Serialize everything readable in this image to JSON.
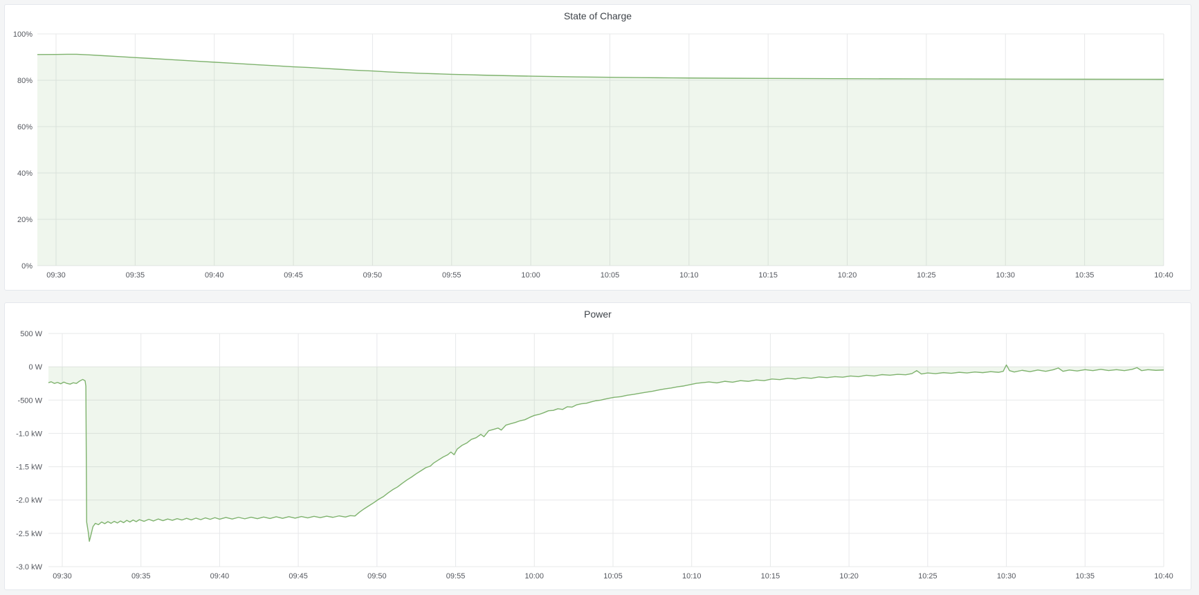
{
  "page": {
    "background_color": "#f4f5f6",
    "panel_background": "#ffffff",
    "panel_border_color": "#e4e7ec"
  },
  "panels": [
    {
      "title": "State of Charge",
      "chart_data": {
        "type": "area",
        "series_name": "State of Charge",
        "line_color": "#7EB26D",
        "fill_color": "rgba(126,178,109,0.12)",
        "grid": true,
        "legend": "none",
        "x_unit": "minutes after 09:30",
        "y_unit": "percent",
        "ylim": [
          0,
          100
        ],
        "xlim": [
          -1.2,
          70
        ],
        "x_tick_minutes": [
          0,
          5,
          10,
          15,
          20,
          25,
          30,
          35,
          40,
          45,
          50,
          55,
          60,
          65,
          70
        ],
        "x_tick_labels": [
          "09:30",
          "09:35",
          "09:40",
          "09:45",
          "09:50",
          "09:55",
          "10:00",
          "10:05",
          "10:10",
          "10:15",
          "10:20",
          "10:25",
          "10:30",
          "10:35",
          "10:40"
        ],
        "y_tick_values": [
          100,
          80,
          60,
          40,
          20,
          0
        ],
        "y_tick_labels": [
          "100%",
          "80%",
          "60%",
          "40%",
          "20%",
          "0%"
        ],
        "points": [
          [
            -1.3,
            91.1
          ],
          [
            0,
            91.15
          ],
          [
            0.7,
            91.2
          ],
          [
            1.3,
            91.2
          ],
          [
            2,
            91.0
          ],
          [
            3,
            90.6
          ],
          [
            4,
            90.2
          ],
          [
            5,
            89.8
          ],
          [
            6,
            89.4
          ],
          [
            7,
            89.0
          ],
          [
            8,
            88.6
          ],
          [
            9,
            88.2
          ],
          [
            10,
            87.8
          ],
          [
            11,
            87.4
          ],
          [
            12,
            87.0
          ],
          [
            13,
            86.6
          ],
          [
            14,
            86.2
          ],
          [
            15,
            85.8
          ],
          [
            16,
            85.5
          ],
          [
            17,
            85.1
          ],
          [
            18,
            84.7
          ],
          [
            19,
            84.3
          ],
          [
            20,
            84.0
          ],
          [
            21,
            83.6
          ],
          [
            22,
            83.3
          ],
          [
            23,
            83.0
          ],
          [
            24,
            82.8
          ],
          [
            25,
            82.56
          ],
          [
            26,
            82.4
          ],
          [
            27,
            82.2
          ],
          [
            28,
            82.05
          ],
          [
            29,
            81.9
          ],
          [
            30,
            81.77
          ],
          [
            31,
            81.65
          ],
          [
            32,
            81.55
          ],
          [
            33,
            81.45
          ],
          [
            34,
            81.36
          ],
          [
            35,
            81.28
          ],
          [
            36,
            81.2
          ],
          [
            37,
            81.14
          ],
          [
            38,
            81.08
          ],
          [
            39,
            81.02
          ],
          [
            40,
            80.97
          ],
          [
            41,
            80.93
          ],
          [
            43,
            80.86
          ],
          [
            45,
            80.8
          ],
          [
            48,
            80.72
          ],
          [
            51,
            80.65
          ],
          [
            55,
            80.57
          ],
          [
            60,
            80.5
          ],
          [
            65,
            80.45
          ],
          [
            70,
            80.41
          ]
        ]
      }
    },
    {
      "title": "Power",
      "chart_data": {
        "type": "area",
        "series_name": "Power",
        "line_color": "#7EB26D",
        "fill_color": "rgba(126,178,109,0.12)",
        "grid": true,
        "legend": "none",
        "x_unit": "minutes after 09:30",
        "y_unit": "watts",
        "ylim": [
          -3000,
          500
        ],
        "xlim": [
          -0.9,
          70
        ],
        "x_tick_minutes": [
          0,
          5,
          10,
          15,
          20,
          25,
          30,
          35,
          40,
          45,
          50,
          55,
          60,
          65,
          70
        ],
        "x_tick_labels": [
          "09:30",
          "09:35",
          "09:40",
          "09:45",
          "09:50",
          "09:55",
          "10:00",
          "10:05",
          "10:10",
          "10:15",
          "10:20",
          "10:25",
          "10:30",
          "10:35",
          "10:40"
        ],
        "y_tick_values": [
          500,
          0,
          -500,
          -1000,
          -1500,
          -2000,
          -2500,
          -3000
        ],
        "y_tick_labels": [
          "500 W",
          "0 W",
          "-500 W",
          "-1.0 kW",
          "-1.5 kW",
          "-2.0 kW",
          "-2.5 kW",
          "-3.0 kW"
        ],
        "points": [
          [
            -1.3,
            -195
          ],
          [
            -1.1,
            -220
          ],
          [
            -0.9,
            -240
          ],
          [
            -0.7,
            -225
          ],
          [
            -0.5,
            -250
          ],
          [
            -0.3,
            -235
          ],
          [
            -0.1,
            -255
          ],
          [
            0.1,
            -230
          ],
          [
            0.3,
            -250
          ],
          [
            0.5,
            -260
          ],
          [
            0.7,
            -240
          ],
          [
            0.9,
            -250
          ],
          [
            1.1,
            -215
          ],
          [
            1.3,
            -190
          ],
          [
            1.45,
            -210
          ],
          [
            1.5,
            -290
          ],
          [
            1.55,
            -2330
          ],
          [
            1.65,
            -2480
          ],
          [
            1.72,
            -2620
          ],
          [
            1.85,
            -2500
          ],
          [
            1.95,
            -2400
          ],
          [
            2.1,
            -2350
          ],
          [
            2.3,
            -2370
          ],
          [
            2.5,
            -2330
          ],
          [
            2.7,
            -2355
          ],
          [
            2.9,
            -2325
          ],
          [
            3.1,
            -2350
          ],
          [
            3.3,
            -2320
          ],
          [
            3.5,
            -2345
          ],
          [
            3.7,
            -2315
          ],
          [
            3.9,
            -2340
          ],
          [
            4.1,
            -2305
          ],
          [
            4.3,
            -2330
          ],
          [
            4.5,
            -2300
          ],
          [
            4.7,
            -2325
          ],
          [
            4.9,
            -2295
          ],
          [
            5.2,
            -2320
          ],
          [
            5.5,
            -2290
          ],
          [
            5.8,
            -2315
          ],
          [
            6.1,
            -2285
          ],
          [
            6.4,
            -2310
          ],
          [
            6.7,
            -2285
          ],
          [
            7.0,
            -2305
          ],
          [
            7.3,
            -2280
          ],
          [
            7.6,
            -2300
          ],
          [
            7.9,
            -2275
          ],
          [
            8.2,
            -2298
          ],
          [
            8.5,
            -2272
          ],
          [
            8.8,
            -2295
          ],
          [
            9.1,
            -2268
          ],
          [
            9.4,
            -2290
          ],
          [
            9.7,
            -2265
          ],
          [
            10.0,
            -2288
          ],
          [
            10.4,
            -2262
          ],
          [
            10.8,
            -2285
          ],
          [
            11.2,
            -2260
          ],
          [
            11.6,
            -2282
          ],
          [
            12.0,
            -2258
          ],
          [
            12.4,
            -2280
          ],
          [
            12.8,
            -2255
          ],
          [
            13.2,
            -2278
          ],
          [
            13.6,
            -2252
          ],
          [
            14.0,
            -2275
          ],
          [
            14.4,
            -2250
          ],
          [
            14.8,
            -2272
          ],
          [
            15.2,
            -2248
          ],
          [
            15.6,
            -2268
          ],
          [
            16.0,
            -2245
          ],
          [
            16.4,
            -2265
          ],
          [
            16.8,
            -2242
          ],
          [
            17.2,
            -2260
          ],
          [
            17.6,
            -2238
          ],
          [
            18.0,
            -2255
          ],
          [
            18.3,
            -2235
          ],
          [
            18.6,
            -2240
          ],
          [
            18.9,
            -2180
          ],
          [
            19.2,
            -2130
          ],
          [
            19.5,
            -2085
          ],
          [
            19.8,
            -2040
          ],
          [
            20.1,
            -1990
          ],
          [
            20.4,
            -1950
          ],
          [
            20.7,
            -1895
          ],
          [
            21.0,
            -1845
          ],
          [
            21.3,
            -1805
          ],
          [
            21.6,
            -1750
          ],
          [
            21.9,
            -1700
          ],
          [
            22.2,
            -1655
          ],
          [
            22.5,
            -1605
          ],
          [
            22.8,
            -1560
          ],
          [
            23.1,
            -1515
          ],
          [
            23.4,
            -1490
          ],
          [
            23.6,
            -1445
          ],
          [
            23.9,
            -1400
          ],
          [
            24.2,
            -1355
          ],
          [
            24.5,
            -1320
          ],
          [
            24.7,
            -1280
          ],
          [
            24.9,
            -1320
          ],
          [
            25.1,
            -1235
          ],
          [
            25.4,
            -1180
          ],
          [
            25.7,
            -1145
          ],
          [
            26.0,
            -1090
          ],
          [
            26.3,
            -1065
          ],
          [
            26.6,
            -1015
          ],
          [
            26.8,
            -1050
          ],
          [
            27.1,
            -960
          ],
          [
            27.4,
            -940
          ],
          [
            27.7,
            -920
          ],
          [
            27.9,
            -950
          ],
          [
            28.2,
            -875
          ],
          [
            28.5,
            -855
          ],
          [
            28.8,
            -835
          ],
          [
            29.1,
            -810
          ],
          [
            29.4,
            -795
          ],
          [
            29.7,
            -760
          ],
          [
            30.0,
            -730
          ],
          [
            30.3,
            -715
          ],
          [
            30.6,
            -690
          ],
          [
            30.9,
            -660
          ],
          [
            31.2,
            -655
          ],
          [
            31.5,
            -630
          ],
          [
            31.8,
            -640
          ],
          [
            32.1,
            -600
          ],
          [
            32.4,
            -605
          ],
          [
            32.7,
            -570
          ],
          [
            33.0,
            -555
          ],
          [
            33.3,
            -548
          ],
          [
            33.6,
            -528
          ],
          [
            33.9,
            -510
          ],
          [
            34.2,
            -502
          ],
          [
            34.5,
            -485
          ],
          [
            34.8,
            -470
          ],
          [
            35.1,
            -458
          ],
          [
            35.5,
            -448
          ],
          [
            35.9,
            -428
          ],
          [
            36.3,
            -415
          ],
          [
            36.7,
            -398
          ],
          [
            37.1,
            -382
          ],
          [
            37.5,
            -368
          ],
          [
            37.9,
            -348
          ],
          [
            38.3,
            -332
          ],
          [
            38.7,
            -318
          ],
          [
            39.1,
            -300
          ],
          [
            39.5,
            -288
          ],
          [
            39.9,
            -268
          ],
          [
            40.3,
            -248
          ],
          [
            40.7,
            -238
          ],
          [
            41.1,
            -228
          ],
          [
            41.6,
            -242
          ],
          [
            42.1,
            -218
          ],
          [
            42.6,
            -232
          ],
          [
            43.1,
            -208
          ],
          [
            43.6,
            -218
          ],
          [
            44.1,
            -198
          ],
          [
            44.6,
            -208
          ],
          [
            45.1,
            -183
          ],
          [
            45.6,
            -193
          ],
          [
            46.1,
            -173
          ],
          [
            46.6,
            -183
          ],
          [
            47.1,
            -163
          ],
          [
            47.6,
            -173
          ],
          [
            48.1,
            -153
          ],
          [
            48.6,
            -163
          ],
          [
            49.1,
            -148
          ],
          [
            49.6,
            -156
          ],
          [
            50.1,
            -138
          ],
          [
            50.6,
            -148
          ],
          [
            51.1,
            -128
          ],
          [
            51.6,
            -138
          ],
          [
            52.1,
            -118
          ],
          [
            52.6,
            -126
          ],
          [
            53.1,
            -113
          ],
          [
            53.6,
            -120
          ],
          [
            54.0,
            -102
          ],
          [
            54.3,
            -58
          ],
          [
            54.6,
            -108
          ],
          [
            55.0,
            -93
          ],
          [
            55.5,
            -103
          ],
          [
            56.0,
            -88
          ],
          [
            56.5,
            -98
          ],
          [
            57.0,
            -83
          ],
          [
            57.5,
            -93
          ],
          [
            58.0,
            -78
          ],
          [
            58.5,
            -88
          ],
          [
            59.0,
            -73
          ],
          [
            59.5,
            -83
          ],
          [
            59.8,
            -68
          ],
          [
            60.0,
            28
          ],
          [
            60.2,
            -58
          ],
          [
            60.5,
            -78
          ],
          [
            61.0,
            -53
          ],
          [
            61.5,
            -73
          ],
          [
            62.0,
            -48
          ],
          [
            62.5,
            -68
          ],
          [
            63.0,
            -43
          ],
          [
            63.3,
            -18
          ],
          [
            63.6,
            -68
          ],
          [
            64.0,
            -48
          ],
          [
            64.5,
            -63
          ],
          [
            65.0,
            -43
          ],
          [
            65.5,
            -58
          ],
          [
            66.0,
            -38
          ],
          [
            66.5,
            -56
          ],
          [
            67.0,
            -43
          ],
          [
            67.5,
            -58
          ],
          [
            68.0,
            -38
          ],
          [
            68.3,
            -13
          ],
          [
            68.6,
            -58
          ],
          [
            69.0,
            -43
          ],
          [
            69.5,
            -53
          ],
          [
            70.0,
            -48
          ]
        ]
      }
    }
  ]
}
